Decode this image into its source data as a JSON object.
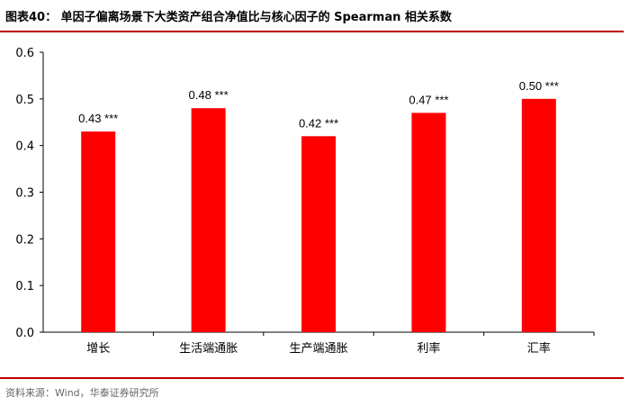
{
  "header": {
    "title": "图表40：  单因子偏离场景下大类资产组合净值比与核心因子的 Spearman 相关系数"
  },
  "footer": {
    "source": "资料来源：Wind，华泰证券研究所"
  },
  "colors": {
    "bar": "#ff0000",
    "rule": "#c00000"
  },
  "chart_data": {
    "type": "bar",
    "categories": [
      "增长",
      "生活端通胀",
      "生产端通胀",
      "利率",
      "汇率"
    ],
    "values": [
      0.43,
      0.48,
      0.42,
      0.47,
      0.5
    ],
    "data_labels": [
      "0.43 ***",
      "0.48 ***",
      "0.42 ***",
      "0.47 ***",
      "0.50 ***"
    ],
    "ylim": [
      0,
      0.6
    ],
    "yticks": [
      "0.0",
      "0.1",
      "0.2",
      "0.3",
      "0.4",
      "0.5",
      "0.6"
    ],
    "grid": false,
    "legend": "none"
  }
}
